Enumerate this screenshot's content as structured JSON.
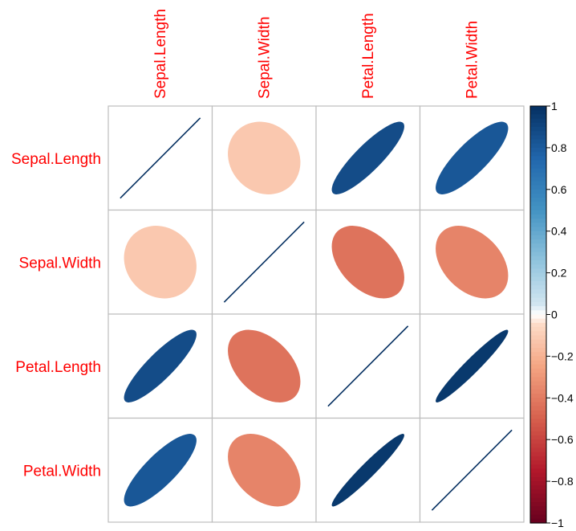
{
  "chart_data": {
    "type": "heatmap",
    "variables": [
      "Sepal.Length",
      "Sepal.Width",
      "Petal.Length",
      "Petal.Width"
    ],
    "matrix": [
      [
        1.0,
        -0.12,
        0.87,
        0.82
      ],
      [
        -0.12,
        1.0,
        -0.43,
        -0.37
      ],
      [
        0.87,
        -0.43,
        1.0,
        0.96
      ],
      [
        0.82,
        -0.37,
        0.96,
        1.0
      ]
    ],
    "colorbar": {
      "ticks": [
        "1",
        "0.8",
        "0.6",
        "0.4",
        "0.2",
        "0",
        "−0.2",
        "−0.4",
        "−0.6",
        "−0.8",
        "−1"
      ],
      "range": [
        -1,
        1
      ]
    },
    "label_color": "#ff0000"
  }
}
